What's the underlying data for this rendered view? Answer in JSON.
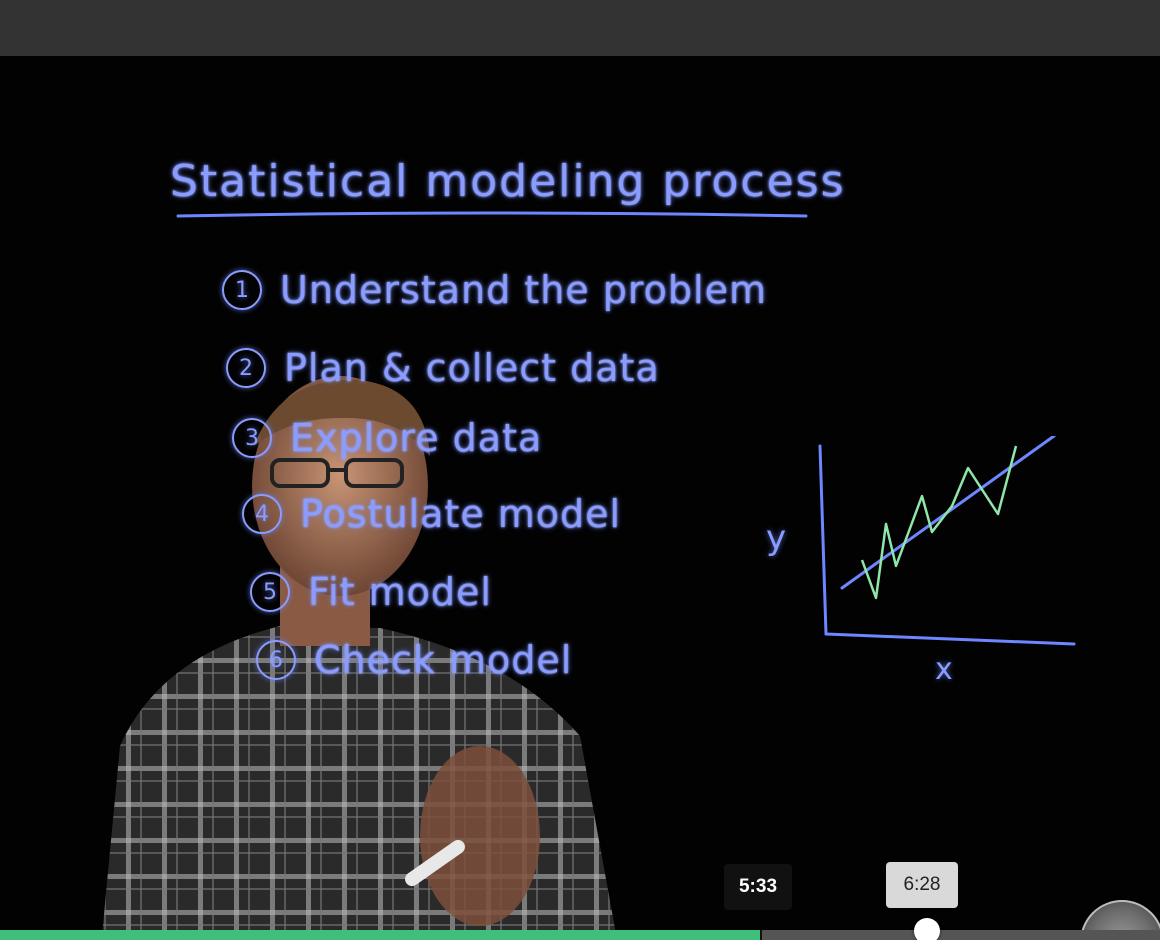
{
  "video": {
    "board": {
      "title": "Statistical modeling process",
      "steps": [
        {
          "num": "1",
          "label": "Understand the problem"
        },
        {
          "num": "2",
          "label": "Plan & collect data"
        },
        {
          "num": "3",
          "label": "Explore data"
        },
        {
          "num": "4",
          "label": "Postulate model"
        },
        {
          "num": "5",
          "label": "Fit model"
        },
        {
          "num": "6",
          "label": "Check model"
        }
      ],
      "plot": {
        "y_axis_label": "y",
        "x_axis_label": "x"
      }
    }
  },
  "player": {
    "current_time": "5:33",
    "hover_time": "6:28",
    "progress_fraction": 0.656,
    "progress_color": "#3fbf7a",
    "track_color": "#555555"
  }
}
